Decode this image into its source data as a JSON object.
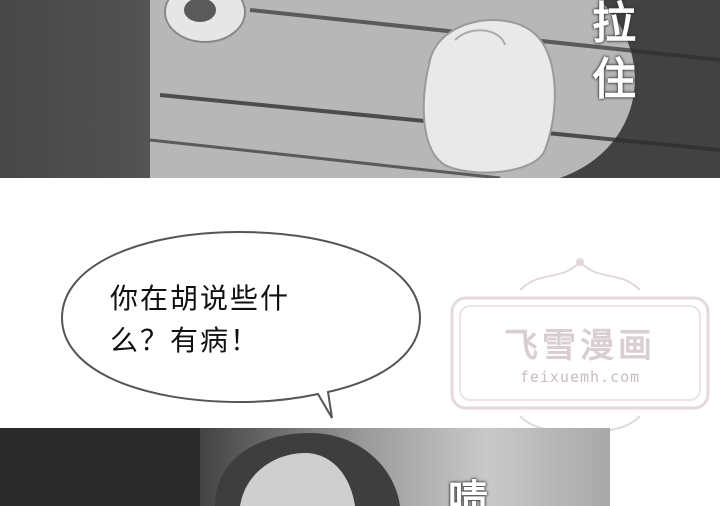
{
  "top_panel": {
    "sfx": [
      "拉",
      "住"
    ]
  },
  "speech_bubble": {
    "line1": "你在胡说些什",
    "line2": "么？有病！"
  },
  "watermark": {
    "title": "飞雪漫画",
    "url": "feixuemh.com"
  },
  "bottom_panel": {
    "sfx_partial": "啧"
  }
}
